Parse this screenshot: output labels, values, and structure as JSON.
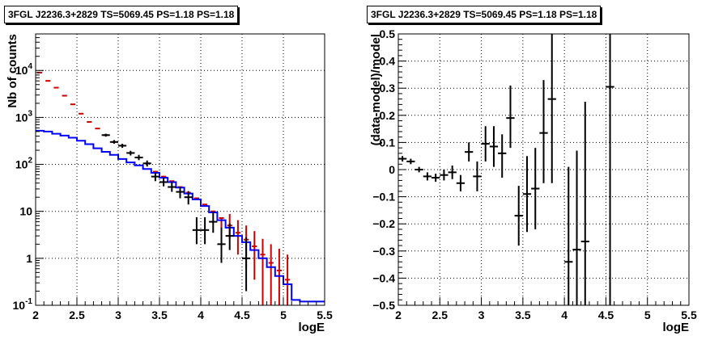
{
  "chart_data": [
    {
      "type": "histogram",
      "title": "3FGL J2236.3+2829 TS=5069.45 PS=1.18 PS=1.18",
      "xlabel": "logE",
      "ylabel": "Nb of counts",
      "xlim": [
        2,
        5.5
      ],
      "ylim": [
        0.1,
        60000
      ],
      "yscale": "log",
      "grid": true,
      "x_ticks": [
        "2",
        "2.5",
        "3",
        "3.5",
        "4",
        "4.5",
        "5",
        "5.5"
      ],
      "y_ticks": [
        {
          "v": 0.1,
          "base": "10",
          "exp": "-1"
        },
        {
          "v": 1,
          "base": "1",
          "exp": ""
        },
        {
          "v": 10,
          "base": "10",
          "exp": ""
        },
        {
          "v": 100,
          "base": "10",
          "exp": "2"
        },
        {
          "v": 1000,
          "base": "10",
          "exp": "3"
        },
        {
          "v": 10000,
          "base": "10",
          "exp": "4"
        }
      ],
      "bin_edges": [
        2.0,
        2.1,
        2.2,
        2.3,
        2.4,
        2.5,
        2.6,
        2.7,
        2.8,
        2.9,
        3.0,
        3.1,
        3.2,
        3.3,
        3.4,
        3.5,
        3.6,
        3.7,
        3.8,
        3.9,
        4.0,
        4.1,
        4.2,
        4.3,
        4.4,
        4.5,
        4.6,
        4.7,
        4.8,
        4.9,
        5.0,
        5.1,
        5.2,
        5.3,
        5.4,
        5.5
      ],
      "series": [
        {
          "name": "",
          "color": "#0000ff",
          "kind": "step",
          "values": [
            520,
            500,
            450,
            410,
            370,
            320,
            270,
            220,
            185,
            160,
            130,
            110,
            95,
            80,
            66,
            52,
            42,
            32,
            24,
            18,
            13,
            9.5,
            6.5,
            4.5,
            3.0,
            2.2,
            1.5,
            1.0,
            0.65,
            0.42,
            0.28,
            0.13,
            0.12,
            0.12,
            0.12
          ]
        },
        {
          "name": "",
          "color": "#cc0000",
          "kind": "bins",
          "values": [
            9000,
            6000,
            4300,
            2900,
            1900,
            1200,
            800,
            580,
            420,
            300,
            250,
            175,
            140,
            105,
            70,
            55,
            44,
            33,
            25,
            19,
            14,
            10,
            7.2,
            5,
            3.5,
            2.5,
            1.8,
            1.2,
            0.8,
            0.55,
            0.35
          ],
          "lo": [
            null,
            null,
            null,
            null,
            null,
            null,
            null,
            null,
            null,
            null,
            null,
            null,
            null,
            null,
            null,
            null,
            null,
            null,
            null,
            null,
            null,
            null,
            3.8,
            2.6,
            1.2,
            0.6,
            0.35,
            0.1,
            0.1,
            0.1,
            0.1
          ],
          "hi": [
            null,
            null,
            null,
            null,
            null,
            null,
            null,
            null,
            null,
            null,
            null,
            null,
            null,
            null,
            null,
            null,
            null,
            null,
            null,
            null,
            null,
            null,
            null,
            8.8,
            6.5,
            5.0,
            3.8,
            2.6,
            2.0,
            1.6,
            1.2
          ]
        },
        {
          "name": "",
          "color": "#000000",
          "kind": "points",
          "points": [
            {
              "x": 2.85,
              "y": 420,
              "lo": 390,
              "hi": 450
            },
            {
              "x": 2.95,
              "y": 300,
              "lo": 275,
              "hi": 330
            },
            {
              "x": 3.05,
              "y": 250,
              "lo": 225,
              "hi": 275
            },
            {
              "x": 3.15,
              "y": 175,
              "lo": 155,
              "hi": 195
            },
            {
              "x": 3.25,
              "y": 140,
              "lo": 123,
              "hi": 160
            },
            {
              "x": 3.35,
              "y": 105,
              "lo": 90,
              "hi": 121
            },
            {
              "x": 3.45,
              "y": 55,
              "lo": 44,
              "hi": 66
            },
            {
              "x": 3.55,
              "y": 42,
              "lo": 34,
              "hi": 52
            },
            {
              "x": 3.65,
              "y": 33,
              "lo": 26,
              "hi": 42
            },
            {
              "x": 3.75,
              "y": 26,
              "lo": 19,
              "hi": 33
            },
            {
              "x": 3.85,
              "y": 20,
              "lo": 14,
              "hi": 27
            },
            {
              "x": 3.95,
              "y": 4,
              "lo": 2,
              "hi": 7.5
            },
            {
              "x": 4.05,
              "y": 4,
              "lo": 2,
              "hi": 7.5
            },
            {
              "x": 4.15,
              "y": 6,
              "lo": 3.5,
              "hi": 10
            },
            {
              "x": 4.25,
              "y": 2,
              "lo": 0.8,
              "hi": 4.5
            },
            {
              "x": 4.35,
              "y": 3,
              "lo": 1.5,
              "hi": 5.5
            },
            {
              "x": 4.55,
              "y": 1,
              "lo": 0.2,
              "hi": 2.8
            }
          ]
        }
      ]
    },
    {
      "type": "scatter",
      "title": "3FGL J2236.3+2829 TS=5069.45 PS=1.18 PS=1.18",
      "xlabel": "logE",
      "ylabel": "(data-model)/model",
      "xlim": [
        2,
        5.5
      ],
      "ylim": [
        -0.5,
        0.5
      ],
      "grid": true,
      "x_ticks": [
        "2",
        "2.5",
        "3",
        "3.5",
        "4",
        "4.5",
        "5",
        "5.5"
      ],
      "y_ticks": [
        "-0.5",
        "-0.4",
        "-0.3",
        "-0.2",
        "-0.1",
        "0",
        "0.1",
        "0.2",
        "0.3",
        "0.4",
        "0.5"
      ],
      "series": [
        {
          "name": "",
          "color": "#000000",
          "points": [
            {
              "x": 2.05,
              "y": 0.04,
              "lo": 0.03,
              "hi": 0.05
            },
            {
              "x": 2.15,
              "y": 0.03,
              "lo": 0.02,
              "hi": 0.04
            },
            {
              "x": 2.25,
              "y": 0.0,
              "lo": -0.01,
              "hi": 0.01
            },
            {
              "x": 2.35,
              "y": -0.025,
              "lo": -0.04,
              "hi": -0.01
            },
            {
              "x": 2.45,
              "y": -0.03,
              "lo": -0.045,
              "hi": -0.015
            },
            {
              "x": 2.55,
              "y": -0.02,
              "lo": -0.04,
              "hi": 0.0
            },
            {
              "x": 2.65,
              "y": -0.01,
              "lo": -0.035,
              "hi": 0.015
            },
            {
              "x": 2.75,
              "y": -0.05,
              "lo": -0.08,
              "hi": -0.02
            },
            {
              "x": 2.85,
              "y": 0.065,
              "lo": 0.03,
              "hi": 0.1
            },
            {
              "x": 2.95,
              "y": -0.025,
              "lo": -0.08,
              "hi": 0.03
            },
            {
              "x": 3.05,
              "y": 0.095,
              "lo": 0.03,
              "hi": 0.16
            },
            {
              "x": 3.15,
              "y": 0.085,
              "lo": 0.01,
              "hi": 0.16
            },
            {
              "x": 3.25,
              "y": 0.06,
              "lo": -0.03,
              "hi": 0.13
            },
            {
              "x": 3.35,
              "y": 0.19,
              "lo": 0.08,
              "hi": 0.31
            },
            {
              "x": 3.45,
              "y": -0.17,
              "lo": -0.28,
              "hi": -0.06
            },
            {
              "x": 3.55,
              "y": -0.09,
              "lo": -0.23,
              "hi": 0.05
            },
            {
              "x": 3.65,
              "y": -0.07,
              "lo": -0.22,
              "hi": 0.08
            },
            {
              "x": 3.75,
              "y": 0.135,
              "lo": -0.05,
              "hi": 0.33
            },
            {
              "x": 3.85,
              "y": 0.26,
              "lo": -0.05,
              "hi": 0.5
            },
            {
              "x": 4.05,
              "y": -0.34,
              "lo": -0.5,
              "hi": 0.01
            },
            {
              "x": 4.15,
              "y": -0.295,
              "lo": -0.5,
              "hi": 0.07
            },
            {
              "x": 4.25,
              "y": -0.265,
              "lo": -0.5,
              "hi": 0.25
            },
            {
              "x": 4.55,
              "y": 0.305,
              "lo": -0.5,
              "hi": 0.5
            }
          ]
        }
      ]
    }
  ]
}
